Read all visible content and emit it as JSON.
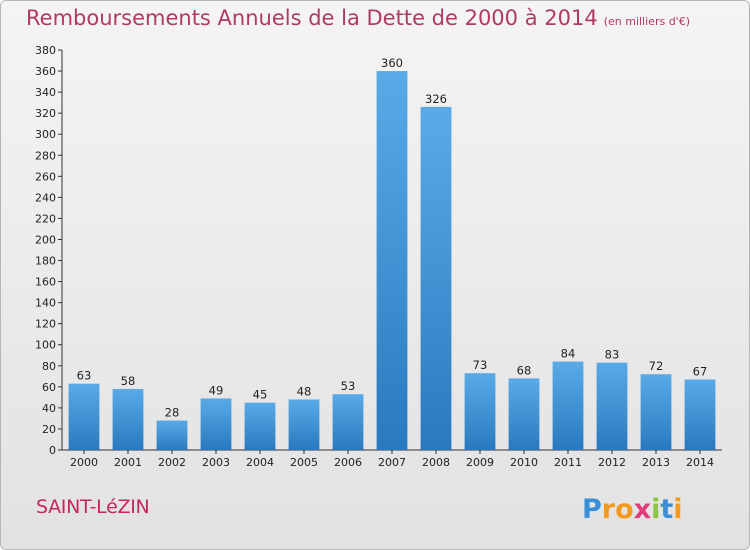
{
  "header": {
    "title": "Remboursements Annuels de la Dette de 2000 à 2014",
    "units": "(en milliers d'€)"
  },
  "commune": "SAINT-LéZIN",
  "logo": {
    "text": "Proxiti",
    "letters": [
      {
        "ch": "P",
        "color": "#3b8fd6"
      },
      {
        "ch": "r",
        "color": "#f39a1e"
      },
      {
        "ch": "o",
        "color": "#f39a1e"
      },
      {
        "ch": "x",
        "color": "#e23c7a"
      },
      {
        "ch": "i",
        "color": "#8cc63f"
      },
      {
        "ch": "t",
        "color": "#3b8fd6"
      },
      {
        "ch": "i",
        "color": "#f39a1e"
      }
    ]
  },
  "chart_data": {
    "type": "bar",
    "title": "Remboursements Annuels de la Dette de 2000 à 2014",
    "xlabel": "",
    "ylabel": "",
    "categories": [
      "2000",
      "2001",
      "2002",
      "2003",
      "2004",
      "2005",
      "2006",
      "2007",
      "2008",
      "2009",
      "2010",
      "2011",
      "2012",
      "2013",
      "2014"
    ],
    "values": [
      63,
      58,
      28,
      49,
      45,
      48,
      53,
      360,
      326,
      73,
      68,
      84,
      83,
      72,
      67
    ],
    "ylim": [
      0,
      380
    ],
    "ytick_step": 20,
    "grid": false,
    "bar_color_top": "#5aaae8",
    "bar_color_bottom": "#2a79bf"
  }
}
